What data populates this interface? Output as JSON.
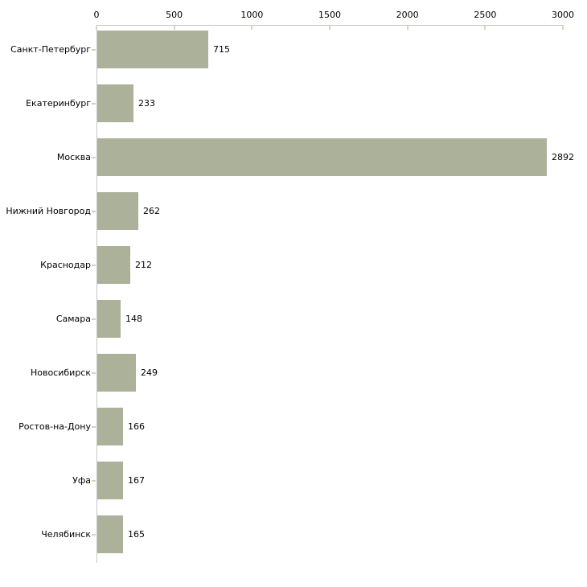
{
  "chart_data": {
    "type": "bar",
    "orientation": "horizontal",
    "title": "",
    "xlabel": "",
    "ylabel": "",
    "categories": [
      "Санкт-Петербург",
      "Екатеринбург",
      "Москва",
      "Нижний Новгород",
      "Краснодар",
      "Самара",
      "Новосибирск",
      "Ростов-на-Дону",
      "Уфа",
      "Челябинск"
    ],
    "values": [
      715,
      233,
      2892,
      262,
      212,
      148,
      249,
      166,
      167,
      165
    ],
    "xlim": [
      0,
      3000
    ],
    "x_ticks": [
      0,
      500,
      1000,
      1500,
      2000,
      2500,
      3000
    ],
    "axis_position": "top",
    "grid": false,
    "legend": false,
    "colors": {
      "bar_fill": "#acb299",
      "axis_line": "#c6c6c6",
      "tick_mark": "#d6d9bd",
      "category_tick": "#cfd2c0",
      "text": "#000000",
      "background": "#ffffff"
    }
  }
}
